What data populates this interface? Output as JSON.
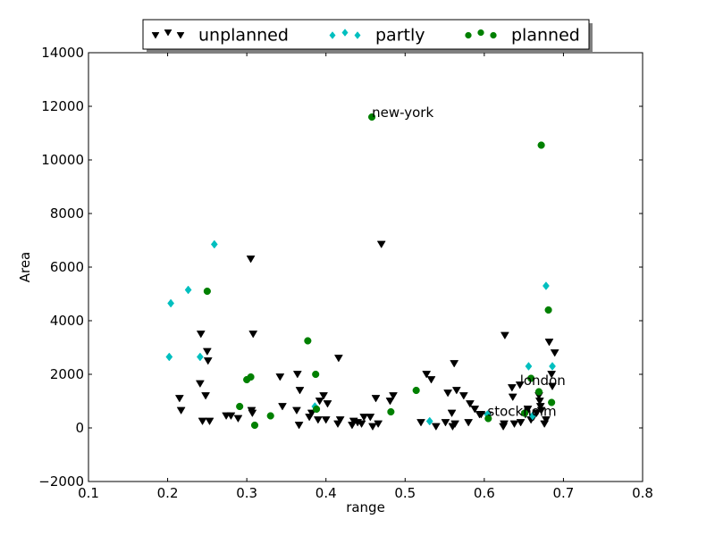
{
  "chart_data": {
    "type": "scatter",
    "title": "",
    "xlabel": "range",
    "ylabel": "Area",
    "xlim": [
      0.1,
      0.8
    ],
    "ylim": [
      -2000,
      14000
    ],
    "xticks": [
      0.1,
      0.2,
      0.3,
      0.4,
      0.5,
      0.6,
      0.7,
      0.8
    ],
    "xtick_labels": [
      "0.1",
      "0.2",
      "0.3",
      "0.4",
      "0.5",
      "0.6",
      "0.7",
      "0.8"
    ],
    "yticks": [
      -2000,
      0,
      2000,
      4000,
      6000,
      8000,
      10000,
      12000,
      14000
    ],
    "ytick_labels": [
      "−2000",
      "0",
      "2000",
      "4000",
      "6000",
      "8000",
      "10000",
      "12000",
      "14000"
    ],
    "grid": false,
    "legend_position": "top-center",
    "series": [
      {
        "name": "unplanned",
        "marker": "triangle-down",
        "color": "#000000",
        "points": [
          [
            0.215,
            1100
          ],
          [
            0.217,
            650
          ],
          [
            0.241,
            1650
          ],
          [
            0.242,
            3500
          ],
          [
            0.244,
            250
          ],
          [
            0.248,
            1200
          ],
          [
            0.25,
            2850
          ],
          [
            0.251,
            2500
          ],
          [
            0.253,
            250
          ],
          [
            0.274,
            450
          ],
          [
            0.28,
            450
          ],
          [
            0.289,
            350
          ],
          [
            0.305,
            6300
          ],
          [
            0.306,
            650
          ],
          [
            0.307,
            550
          ],
          [
            0.308,
            3500
          ],
          [
            0.342,
            1900
          ],
          [
            0.345,
            800
          ],
          [
            0.363,
            650
          ],
          [
            0.364,
            2000
          ],
          [
            0.366,
            100
          ],
          [
            0.367,
            1400
          ],
          [
            0.379,
            400
          ],
          [
            0.382,
            550
          ],
          [
            0.39,
            300
          ],
          [
            0.392,
            1000
          ],
          [
            0.397,
            1200
          ],
          [
            0.4,
            300
          ],
          [
            0.402,
            900
          ],
          [
            0.415,
            150
          ],
          [
            0.416,
            2600
          ],
          [
            0.418,
            300
          ],
          [
            0.433,
            100
          ],
          [
            0.435,
            250
          ],
          [
            0.44,
            200
          ],
          [
            0.445,
            150
          ],
          [
            0.448,
            400
          ],
          [
            0.456,
            400
          ],
          [
            0.459,
            50
          ],
          [
            0.463,
            1100
          ],
          [
            0.466,
            150
          ],
          [
            0.47,
            6850
          ],
          [
            0.481,
            1000
          ],
          [
            0.485,
            1200
          ],
          [
            0.52,
            200
          ],
          [
            0.527,
            2000
          ],
          [
            0.533,
            1800
          ],
          [
            0.539,
            50
          ],
          [
            0.551,
            200
          ],
          [
            0.554,
            1300
          ],
          [
            0.559,
            550
          ],
          [
            0.56,
            50
          ],
          [
            0.562,
            2400
          ],
          [
            0.563,
            150
          ],
          [
            0.565,
            1400
          ],
          [
            0.574,
            1200
          ],
          [
            0.58,
            200
          ],
          [
            0.582,
            900
          ],
          [
            0.588,
            700
          ],
          [
            0.594,
            500
          ],
          [
            0.596,
            500
          ],
          [
            0.604,
            450
          ],
          [
            0.624,
            50
          ],
          [
            0.625,
            150
          ],
          [
            0.626,
            3450
          ],
          [
            0.635,
            1500
          ],
          [
            0.636,
            1150
          ],
          [
            0.638,
            150
          ],
          [
            0.645,
            1600
          ],
          [
            0.646,
            200
          ],
          [
            0.652,
            500
          ],
          [
            0.655,
            700
          ],
          [
            0.659,
            300
          ],
          [
            0.662,
            400
          ],
          [
            0.666,
            550
          ],
          [
            0.669,
            1200
          ],
          [
            0.67,
            1000
          ],
          [
            0.671,
            800
          ],
          [
            0.672,
            650
          ],
          [
            0.676,
            150
          ],
          [
            0.678,
            300
          ],
          [
            0.682,
            3200
          ],
          [
            0.685,
            2000
          ],
          [
            0.686,
            1550
          ],
          [
            0.689,
            2800
          ]
        ]
      },
      {
        "name": "partly",
        "marker": "diamond",
        "color": "#00bfbf",
        "points": [
          [
            0.202,
            2650
          ],
          [
            0.204,
            4650
          ],
          [
            0.226,
            5150
          ],
          [
            0.241,
            2650
          ],
          [
            0.259,
            6850
          ],
          [
            0.386,
            800
          ],
          [
            0.531,
            250
          ],
          [
            0.604,
            500
          ],
          [
            0.656,
            2300
          ],
          [
            0.661,
            450
          ],
          [
            0.678,
            5300
          ],
          [
            0.686,
            2300
          ]
        ]
      },
      {
        "name": "planned",
        "marker": "circle",
        "color": "#008000",
        "points": [
          [
            0.25,
            5100
          ],
          [
            0.291,
            800
          ],
          [
            0.3,
            1800
          ],
          [
            0.305,
            1900
          ],
          [
            0.31,
            100
          ],
          [
            0.33,
            450
          ],
          [
            0.377,
            3250
          ],
          [
            0.387,
            2000
          ],
          [
            0.388,
            700
          ],
          [
            0.458,
            11600
          ],
          [
            0.482,
            600
          ],
          [
            0.514,
            1400
          ],
          [
            0.605,
            350
          ],
          [
            0.651,
            550
          ],
          [
            0.659,
            1850
          ],
          [
            0.669,
            1350
          ],
          [
            0.672,
            10550
          ],
          [
            0.681,
            4400
          ],
          [
            0.685,
            950
          ]
        ]
      }
    ],
    "annotations": [
      {
        "text": "new-york",
        "x": 0.458,
        "y": 11600
      },
      {
        "text": "london",
        "x": 0.645,
        "y": 1600
      },
      {
        "text": "stockholm",
        "x": 0.604,
        "y": 450
      }
    ]
  }
}
